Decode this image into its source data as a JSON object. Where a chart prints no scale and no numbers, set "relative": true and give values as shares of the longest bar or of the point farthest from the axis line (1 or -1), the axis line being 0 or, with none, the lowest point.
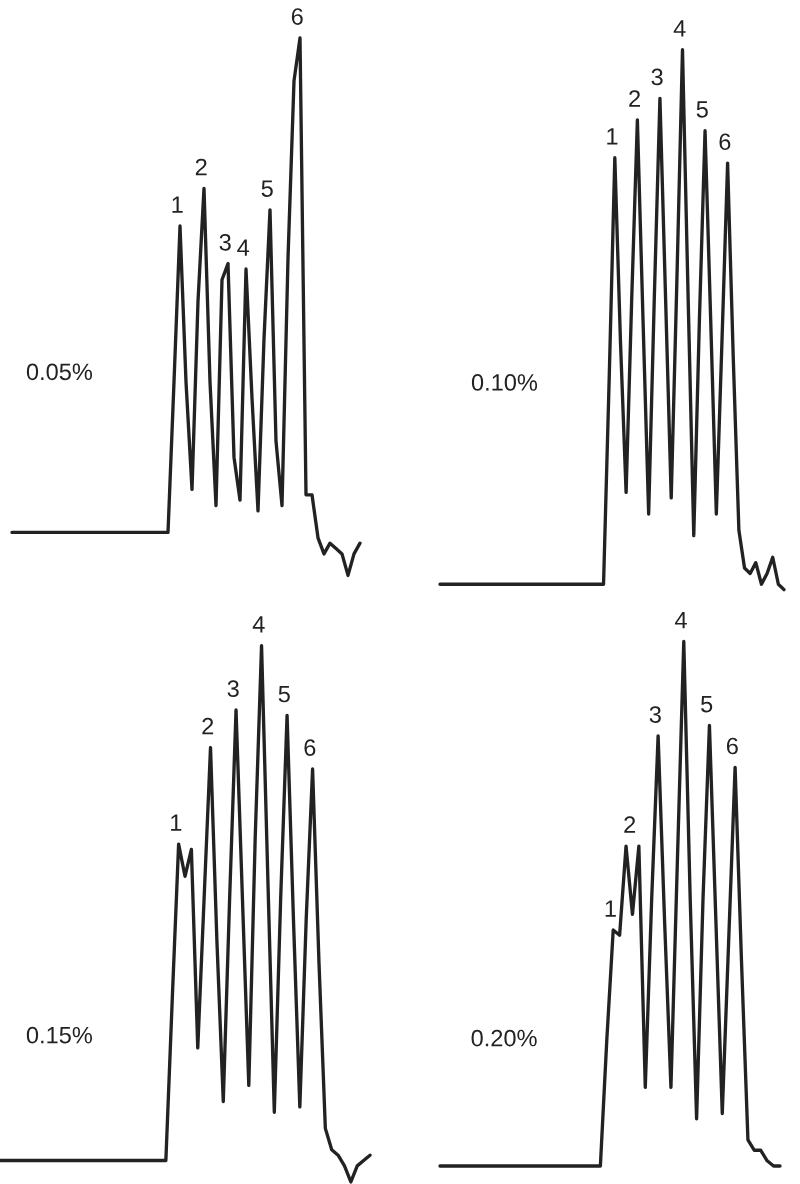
{
  "chart_data": [
    {
      "type": "line",
      "relative": true,
      "title": "0.05%",
      "color": "#222222",
      "categories": [
        null,
        null,
        null,
        null,
        null,
        null,
        null,
        null,
        null,
        null,
        null,
        null,
        null,
        null,
        null,
        null,
        null,
        null,
        null,
        null,
        null,
        null,
        null,
        null,
        null,
        null,
        null,
        null,
        null,
        null,
        null,
        null,
        null,
        null,
        null,
        null,
        null,
        null,
        null,
        null,
        null,
        null,
        null,
        null,
        null,
        null,
        null,
        null,
        null,
        null,
        null,
        null,
        null,
        null,
        null,
        null,
        null,
        null,
        null
      ],
      "values": [
        0.08,
        0.08,
        0.08,
        0.08,
        0.08,
        0.08,
        0.08,
        0.08,
        0.08,
        0.08,
        0.08,
        0.08,
        0.08,
        0.08,
        0.08,
        0.08,
        0.08,
        0.08,
        0.08,
        0.08,
        0.08,
        0.08,
        0.08,
        0.08,
        0.08,
        0.08,
        0.08,
        0.36,
        0.65,
        0.36,
        0.16,
        0.51,
        0.72,
        0.36,
        0.13,
        0.55,
        0.58,
        0.22,
        0.14,
        0.57,
        0.33,
        0.12,
        0.44,
        0.68,
        0.25,
        0.13,
        0.59,
        0.92,
        1.0,
        0.15,
        0.15,
        0.07,
        0.04,
        0.06,
        0.05,
        0.04,
        0.0,
        0.04,
        0.06
      ],
      "annotations": [
        "1",
        "2",
        "3",
        "4",
        "5",
        "6"
      ]
    },
    {
      "type": "line",
      "relative": true,
      "title": "0.10%",
      "color": "#222222",
      "categories": [
        null,
        null,
        null,
        null,
        null,
        null,
        null,
        null,
        null,
        null,
        null,
        null,
        null,
        null,
        null,
        null,
        null,
        null,
        null,
        null,
        null,
        null,
        null,
        null,
        null,
        null,
        null,
        null,
        null,
        null,
        null,
        null,
        null,
        null,
        null,
        null,
        null,
        null,
        null,
        null,
        null,
        null,
        null,
        null,
        null,
        null,
        null,
        null,
        null,
        null,
        null,
        null,
        null,
        null,
        null,
        null,
        null,
        null,
        null,
        null,
        null,
        null
      ],
      "values": [
        0.01,
        0.01,
        0.01,
        0.01,
        0.01,
        0.01,
        0.01,
        0.01,
        0.01,
        0.01,
        0.01,
        0.01,
        0.01,
        0.01,
        0.01,
        0.01,
        0.01,
        0.01,
        0.01,
        0.01,
        0.01,
        0.01,
        0.01,
        0.01,
        0.01,
        0.01,
        0.01,
        0.01,
        0.01,
        0.01,
        0.39,
        0.8,
        0.46,
        0.18,
        0.54,
        0.87,
        0.5,
        0.14,
        0.54,
        0.91,
        0.54,
        0.17,
        0.57,
        1.0,
        0.54,
        0.1,
        0.5,
        0.85,
        0.5,
        0.14,
        0.46,
        0.79,
        0.43,
        0.11,
        0.04,
        0.03,
        0.05,
        0.01,
        0.03,
        0.06,
        0.01,
        0.0
      ],
      "annotations": [
        "1",
        "2",
        "3",
        "4",
        "5",
        "6"
      ]
    },
    {
      "type": "line",
      "relative": true,
      "title": "0.15%",
      "color": "#222222",
      "categories": [
        null,
        null,
        null,
        null,
        null,
        null,
        null,
        null,
        null,
        null,
        null,
        null,
        null,
        null,
        null,
        null,
        null,
        null,
        null,
        null,
        null,
        null,
        null,
        null,
        null,
        null,
        null,
        null,
        null,
        null,
        null,
        null,
        null,
        null,
        null,
        null,
        null,
        null,
        null,
        null,
        null,
        null,
        null,
        null,
        null,
        null,
        null,
        null,
        null,
        null,
        null,
        null,
        null,
        null,
        null,
        null,
        null,
        null,
        null
      ],
      "values": [
        0.04,
        0.04,
        0.04,
        0.04,
        0.04,
        0.04,
        0.04,
        0.04,
        0.04,
        0.04,
        0.04,
        0.04,
        0.04,
        0.04,
        0.04,
        0.04,
        0.04,
        0.04,
        0.04,
        0.04,
        0.04,
        0.04,
        0.04,
        0.04,
        0.04,
        0.04,
        0.04,
        0.34,
        0.63,
        0.57,
        0.62,
        0.25,
        0.53,
        0.81,
        0.45,
        0.15,
        0.53,
        0.88,
        0.53,
        0.18,
        0.64,
        1.0,
        0.56,
        0.13,
        0.53,
        0.87,
        0.49,
        0.14,
        0.49,
        0.77,
        0.41,
        0.1,
        0.06,
        0.05,
        0.03,
        0.0,
        0.03,
        0.04,
        0.05
      ],
      "annotations": [
        "1",
        "2",
        "3",
        "4",
        "5",
        "6"
      ]
    },
    {
      "type": "line",
      "relative": true,
      "title": "0.20%",
      "color": "#222222",
      "categories": [
        null,
        null,
        null,
        null,
        null,
        null,
        null,
        null,
        null,
        null,
        null,
        null,
        null,
        null,
        null,
        null,
        null,
        null,
        null,
        null,
        null,
        null,
        null,
        null,
        null,
        null,
        null,
        null,
        null,
        null,
        null,
        null,
        null,
        null,
        null,
        null,
        null,
        null,
        null,
        null,
        null,
        null,
        null,
        null,
        null,
        null,
        null,
        null,
        null,
        null,
        null,
        null,
        null,
        null
      ],
      "values": [
        0.0,
        0.0,
        0.0,
        0.0,
        0.0,
        0.0,
        0.0,
        0.0,
        0.0,
        0.0,
        0.0,
        0.0,
        0.0,
        0.0,
        0.0,
        0.0,
        0.0,
        0.0,
        0.0,
        0.0,
        0.0,
        0.0,
        0.0,
        0.0,
        0.0,
        0.0,
        0.24,
        0.45,
        0.44,
        0.61,
        0.48,
        0.61,
        0.15,
        0.51,
        0.82,
        0.47,
        0.15,
        0.58,
        1.0,
        0.51,
        0.09,
        0.51,
        0.84,
        0.47,
        0.1,
        0.43,
        0.76,
        0.39,
        0.05,
        0.03,
        0.03,
        0.01,
        0.0,
        0.0
      ],
      "annotations": [
        "1",
        "2",
        "3",
        "4",
        "5",
        "6"
      ]
    }
  ]
}
